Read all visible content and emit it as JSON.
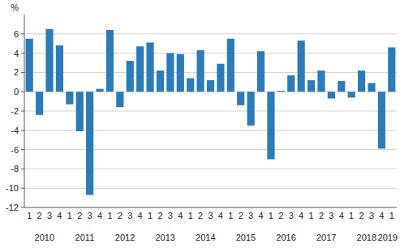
{
  "chart_data": {
    "type": "bar",
    "ylabel": "%",
    "categories": [
      "1",
      "2",
      "3",
      "4",
      "1",
      "2",
      "3",
      "4",
      "1",
      "2",
      "3",
      "4",
      "1",
      "2",
      "3",
      "4",
      "1",
      "2",
      "3",
      "4",
      "1",
      "2",
      "3",
      "4",
      "1",
      "2",
      "3",
      "4",
      "1",
      "2",
      "3",
      "4",
      "1",
      "2",
      "3",
      "4",
      "1"
    ],
    "groups": [
      {
        "label": "2010",
        "size": 4
      },
      {
        "label": "2011",
        "size": 4
      },
      {
        "label": "2012",
        "size": 4
      },
      {
        "label": "2013",
        "size": 4
      },
      {
        "label": "2014",
        "size": 4
      },
      {
        "label": "2015",
        "size": 4
      },
      {
        "label": "2016",
        "size": 4
      },
      {
        "label": "2017",
        "size": 4
      },
      {
        "label": "2018",
        "size": 4
      },
      {
        "label": "2019",
        "size": 1
      }
    ],
    "values": [
      5.5,
      -2.4,
      6.5,
      4.8,
      -1.3,
      -4.1,
      -10.7,
      0.3,
      6.4,
      -1.6,
      3.2,
      4.7,
      5.1,
      2.2,
      4.0,
      3.9,
      1.4,
      4.3,
      1.2,
      2.9,
      5.5,
      -1.4,
      -3.5,
      4.2,
      -7.0,
      0.1,
      1.7,
      5.3,
      1.2,
      2.2,
      -0.7,
      1.1,
      -0.6,
      2.2,
      0.9,
      -5.9,
      4.6
    ],
    "color": "#2b7bb9",
    "ylim": [
      -12,
      8
    ],
    "yticks": [
      -12,
      -10,
      -8,
      -6,
      -4,
      -2,
      0,
      2,
      4,
      6
    ],
    "grid": true
  }
}
